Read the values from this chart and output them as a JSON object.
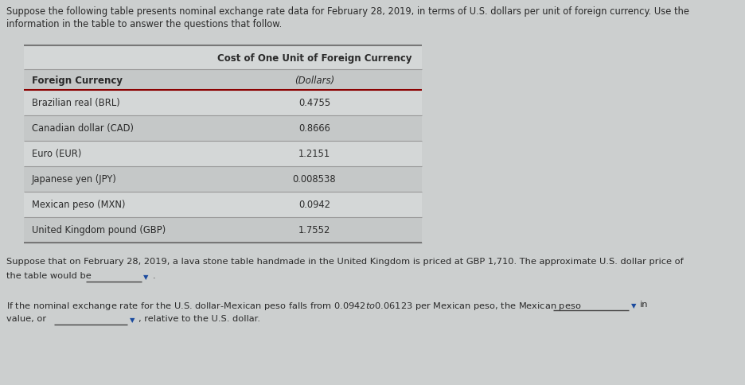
{
  "intro_text_line1": "Suppose the following table presents nominal exchange rate data for February 28, 2019, in terms of U.S. dollars per unit of foreign currency. Use the",
  "intro_text_line2": "information in the table to answer the questions that follow.",
  "table_header_col2_line1": "Cost of One Unit of Foreign Currency",
  "table_header_col1": "Foreign Currency",
  "table_header_col2_line2": "(Dollars)",
  "table_rows": [
    [
      "Brazilian real (BRL)",
      "0.4755"
    ],
    [
      "Canadian dollar (CAD)",
      "0.8666"
    ],
    [
      "Euro (EUR)",
      "1.2151"
    ],
    [
      "Japanese yen (JPY)",
      "0.008538"
    ],
    [
      "Mexican peso (MXN)",
      "0.0942"
    ],
    [
      "United Kingdom pound (GBP)",
      "1.7552"
    ]
  ],
  "question1_line1": "Suppose that on February 28, 2019, a lava stone table handmade in the United Kingdom is priced at GBP 1,710. The approximate U.S. dollar price of",
  "question1_line2": "the table would be",
  "question2_line1": "If the nominal exchange rate for the U.S. dollar-Mexican peso falls from $0.0942 to $0.06123 per Mexican peso, the Mexican peso",
  "question2_line2": "value, or",
  "question2_suffix": "in",
  "question2_suffix2": ", relative to the U.S. dollar.",
  "bg_color": "#cccfcf",
  "text_color": "#2a2a2a",
  "header_line_color": "#8b0000",
  "row_colors": [
    "#d4d7d7",
    "#c5c8c8",
    "#d4d7d7",
    "#c5c8c8",
    "#d4d7d7",
    "#c5c8c8"
  ],
  "header_row1_color": "#d4d7d7",
  "header_row2_color": "#c5c8c8",
  "top_line_color": "#777777",
  "mid_line_color": "#999999",
  "bottom_line_color": "#777777"
}
